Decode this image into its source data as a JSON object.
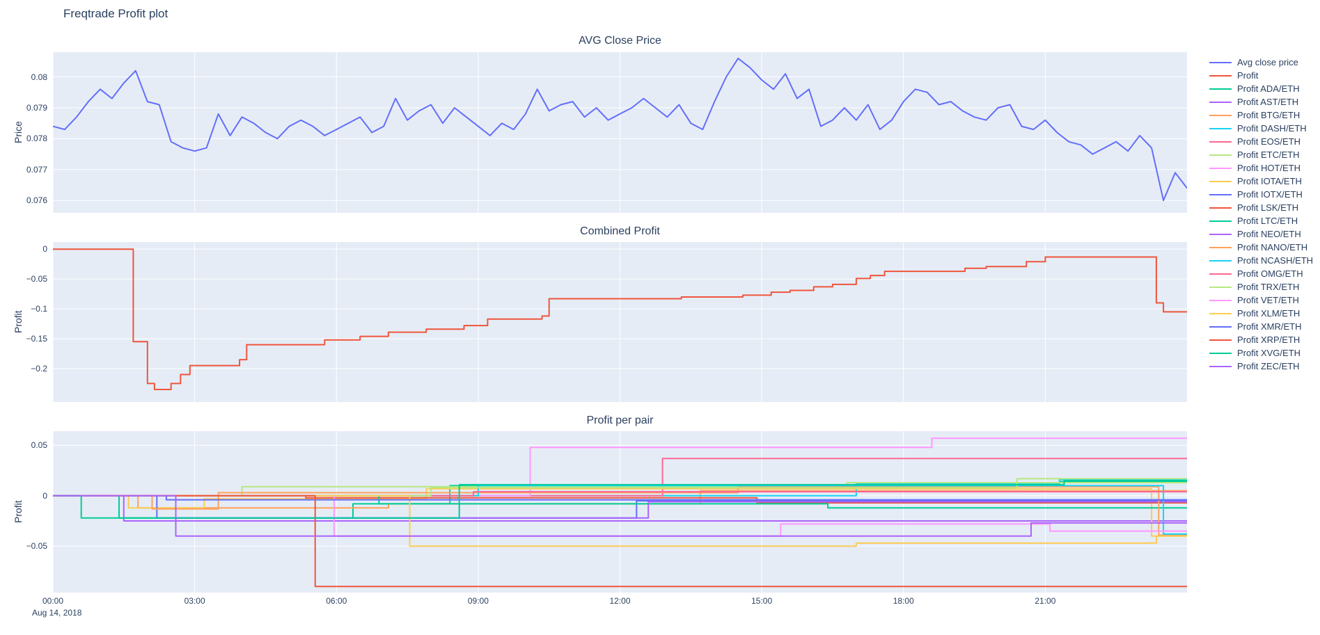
{
  "figure": {
    "title": "Freqtrade Profit plot",
    "colors": {
      "text": "#2a3f5f",
      "plot_background": "#E5ECF6",
      "grid": "#ffffff",
      "paper_background": "#ffffff"
    }
  },
  "xaxis": {
    "range": [
      0,
      24
    ],
    "date_label": "Aug 14, 2018",
    "ticks": [
      {
        "value": 0,
        "label": "00:00"
      },
      {
        "value": 3,
        "label": "03:00"
      },
      {
        "value": 6,
        "label": "06:00"
      },
      {
        "value": 9,
        "label": "09:00"
      },
      {
        "value": 12,
        "label": "12:00"
      },
      {
        "value": 15,
        "label": "15:00"
      },
      {
        "value": 18,
        "label": "18:00"
      },
      {
        "value": 21,
        "label": "21:00"
      }
    ]
  },
  "chart_data": [
    {
      "type": "line",
      "title": "AVG Close Price",
      "ylabel": "Price",
      "ylim": [
        0.0756,
        0.0808
      ],
      "yticks": [
        {
          "v": 0.08,
          "label": "0.08"
        },
        {
          "v": 0.079,
          "label": "0.079"
        },
        {
          "v": 0.078,
          "label": "0.078"
        },
        {
          "v": 0.077,
          "label": "0.077"
        },
        {
          "v": 0.076,
          "label": "0.076"
        }
      ],
      "series": [
        {
          "name": "Avg close price",
          "color": "#636EFA",
          "mode": "linear",
          "x_start": 0,
          "x_step": 0.25,
          "y": [
            0.0784,
            0.0783,
            0.0787,
            0.0792,
            0.0796,
            0.0793,
            0.0798,
            0.0802,
            0.0792,
            0.0791,
            0.0779,
            0.0777,
            0.0776,
            0.0777,
            0.0788,
            0.0781,
            0.0787,
            0.0785,
            0.0782,
            0.078,
            0.0784,
            0.0786,
            0.0784,
            0.0781,
            0.0783,
            0.0785,
            0.0787,
            0.0782,
            0.0784,
            0.0793,
            0.0786,
            0.0789,
            0.0791,
            0.0785,
            0.079,
            0.0787,
            0.0784,
            0.0781,
            0.0785,
            0.0783,
            0.0788,
            0.0796,
            0.0789,
            0.0791,
            0.0792,
            0.0787,
            0.079,
            0.0786,
            0.0788,
            0.079,
            0.0793,
            0.079,
            0.0787,
            0.0791,
            0.0785,
            0.0783,
            0.0792,
            0.08,
            0.0806,
            0.0803,
            0.0799,
            0.0796,
            0.0801,
            0.0793,
            0.0796,
            0.0784,
            0.0786,
            0.079,
            0.0786,
            0.0791,
            0.0783,
            0.0786,
            0.0792,
            0.0796,
            0.0795,
            0.0791,
            0.0792,
            0.0789,
            0.0787,
            0.0786,
            0.079,
            0.0791,
            0.0784,
            0.0783,
            0.0786,
            0.0782,
            0.0779,
            0.0778,
            0.0775,
            0.0777,
            0.0779,
            0.0776,
            0.0781,
            0.0777,
            0.076,
            0.0769,
            0.0764
          ]
        }
      ]
    },
    {
      "type": "line",
      "title": "Combined Profit",
      "ylabel": "Profit",
      "ylim": [
        -0.256,
        0.012
      ],
      "yticks": [
        {
          "v": 0,
          "label": "0"
        },
        {
          "v": -0.05,
          "label": "−0.05"
        },
        {
          "v": -0.1,
          "label": "−0.1"
        },
        {
          "v": -0.15,
          "label": "−0.15"
        },
        {
          "v": -0.2,
          "label": "−0.2"
        }
      ],
      "series": [
        {
          "name": "Profit",
          "color": "#EF553B",
          "mode": "step",
          "points": [
            [
              0,
              0
            ],
            [
              1.7,
              -0.155
            ],
            [
              2.0,
              -0.225
            ],
            [
              2.15,
              -0.235
            ],
            [
              2.5,
              -0.225
            ],
            [
              2.7,
              -0.21
            ],
            [
              2.9,
              -0.195
            ],
            [
              3.95,
              -0.185
            ],
            [
              4.1,
              -0.16
            ],
            [
              5.75,
              -0.152
            ],
            [
              6.5,
              -0.146
            ],
            [
              7.1,
              -0.139
            ],
            [
              7.9,
              -0.134
            ],
            [
              8.7,
              -0.128
            ],
            [
              9.2,
              -0.117
            ],
            [
              10.35,
              -0.112
            ],
            [
              10.5,
              -0.083
            ],
            [
              13.3,
              -0.08
            ],
            [
              14.6,
              -0.077
            ],
            [
              15.2,
              -0.072
            ],
            [
              15.6,
              -0.069
            ],
            [
              16.1,
              -0.063
            ],
            [
              16.5,
              -0.059
            ],
            [
              17.0,
              -0.049
            ],
            [
              17.3,
              -0.044
            ],
            [
              17.6,
              -0.037
            ],
            [
              19.3,
              -0.032
            ],
            [
              19.75,
              -0.029
            ],
            [
              20.6,
              -0.021
            ],
            [
              21.0,
              -0.013
            ],
            [
              23.35,
              -0.09
            ],
            [
              23.5,
              -0.105
            ]
          ]
        }
      ]
    },
    {
      "type": "line",
      "title": "Profit per pair",
      "ylabel": "Profit",
      "ylim": [
        -0.096,
        0.064
      ],
      "yticks": [
        {
          "v": 0.05,
          "label": "0.05"
        },
        {
          "v": 0,
          "label": "0"
        },
        {
          "v": -0.05,
          "label": "−0.05"
        }
      ],
      "series": [
        {
          "name": "Profit ADA/ETH",
          "color": "#00CC96",
          "mode": "step",
          "points": [
            [
              0,
              0
            ],
            [
              1.4,
              -0.022
            ],
            [
              6.35,
              -0.008
            ],
            [
              8.4,
              0.01
            ],
            [
              21.3,
              0.014
            ]
          ]
        },
        {
          "name": "Profit AST/ETH",
          "color": "#AB63FA",
          "mode": "step",
          "points": [
            [
              0,
              0
            ],
            [
              1.5,
              -0.025
            ]
          ]
        },
        {
          "name": "Profit BTG/ETH",
          "color": "#FFA15A",
          "mode": "step",
          "points": [
            [
              0,
              0
            ],
            [
              1.8,
              -0.012
            ],
            [
              7.1,
              -0.008
            ],
            [
              13.7,
              0.005
            ]
          ]
        },
        {
          "name": "Profit DASH/ETH",
          "color": "#19D3F3",
          "mode": "step",
          "points": [
            [
              0,
              0
            ],
            [
              17.0,
              0.012
            ],
            [
              21.3,
              0.016
            ]
          ]
        },
        {
          "name": "Profit EOS/ETH",
          "color": "#FF6692",
          "mode": "step",
          "points": [
            [
              0,
              0
            ],
            [
              12.9,
              0.037
            ]
          ]
        },
        {
          "name": "Profit ETC/ETH",
          "color": "#B6E880",
          "mode": "step",
          "points": [
            [
              0,
              0
            ],
            [
              4.0,
              0.009
            ],
            [
              16.8,
              0.013
            ]
          ]
        },
        {
          "name": "Profit HOT/ETH",
          "color": "#FF97FF",
          "mode": "step",
          "points": [
            [
              0,
              0
            ],
            [
              10.1,
              0.048
            ],
            [
              18.6,
              0.057
            ]
          ]
        },
        {
          "name": "Profit IOTA/ETH",
          "color": "#FECB52",
          "mode": "step",
          "points": [
            [
              0,
              0
            ],
            [
              1.6,
              -0.012
            ],
            [
              3.2,
              -0.003
            ],
            [
              7.9,
              0.007
            ],
            [
              23.25,
              -0.04
            ]
          ]
        },
        {
          "name": "Profit IOTX/ETH",
          "color": "#636EFA",
          "mode": "step",
          "points": [
            [
              0,
              0
            ],
            [
              2.2,
              -0.022
            ],
            [
              12.35,
              -0.005
            ]
          ]
        },
        {
          "name": "Profit LSK/ETH",
          "color": "#EF553B",
          "mode": "step",
          "points": [
            [
              0,
              0
            ],
            [
              5.35,
              -0.002
            ],
            [
              14.9,
              -0.007
            ]
          ]
        },
        {
          "name": "Profit LTC/ETH",
          "color": "#00CC96",
          "mode": "step",
          "points": [
            [
              0,
              0
            ],
            [
              6.9,
              -0.008
            ],
            [
              16.4,
              -0.012
            ]
          ]
        },
        {
          "name": "Profit NEO/ETH",
          "color": "#AB63FA",
          "mode": "step",
          "points": [
            [
              0,
              0
            ],
            [
              2.6,
              -0.022
            ],
            [
              12.6,
              -0.006
            ]
          ]
        },
        {
          "name": "Profit NANO/ETH",
          "color": "#FFA15A",
          "mode": "step",
          "points": [
            [
              0,
              0
            ],
            [
              2.1,
              -0.013
            ],
            [
              3.5,
              0.003
            ],
            [
              14.5,
              0.009
            ],
            [
              23.4,
              -0.039
            ]
          ]
        },
        {
          "name": "Profit NCASH/ETH",
          "color": "#19D3F3",
          "mode": "step",
          "points": [
            [
              0,
              0
            ],
            [
              9.0,
              0.01
            ],
            [
              23.5,
              -0.038
            ]
          ]
        },
        {
          "name": "Profit OMG/ETH",
          "color": "#FF6692",
          "mode": "step",
          "points": [
            [
              0,
              0
            ],
            [
              8.9,
              0.004
            ]
          ]
        },
        {
          "name": "Profit TRX/ETH",
          "color": "#B6E880",
          "mode": "step",
          "points": [
            [
              0,
              0
            ],
            [
              8.0,
              0.008
            ],
            [
              20.4,
              0.017
            ]
          ]
        },
        {
          "name": "Profit VET/ETH",
          "color": "#FF97FF",
          "mode": "step",
          "points": [
            [
              0,
              0
            ],
            [
              5.95,
              -0.04
            ],
            [
              15.4,
              -0.028
            ],
            [
              21.1,
              -0.035
            ]
          ]
        },
        {
          "name": "Profit XLM/ETH",
          "color": "#FECB52",
          "mode": "step",
          "points": [
            [
              0,
              0
            ],
            [
              7.55,
              -0.05
            ],
            [
              17.0,
              -0.047
            ],
            [
              23.35,
              -0.04
            ]
          ]
        },
        {
          "name": "Profit XMR/ETH",
          "color": "#636EFA",
          "mode": "step",
          "points": [
            [
              0,
              0
            ],
            [
              2.4,
              -0.004
            ]
          ]
        },
        {
          "name": "Profit XRP/ETH",
          "color": "#EF553B",
          "mode": "step",
          "points": [
            [
              0,
              0
            ],
            [
              5.55,
              -0.09
            ]
          ]
        },
        {
          "name": "Profit XVG/ETH",
          "color": "#00CC96",
          "mode": "step",
          "points": [
            [
              0,
              0
            ],
            [
              0.6,
              -0.022
            ],
            [
              8.6,
              0.011
            ],
            [
              21.4,
              0.015
            ]
          ]
        },
        {
          "name": "Profit ZEC/ETH",
          "color": "#AB63FA",
          "mode": "step",
          "points": [
            [
              0,
              0
            ],
            [
              2.6,
              -0.04
            ],
            [
              20.7,
              -0.027
            ]
          ]
        }
      ]
    }
  ]
}
